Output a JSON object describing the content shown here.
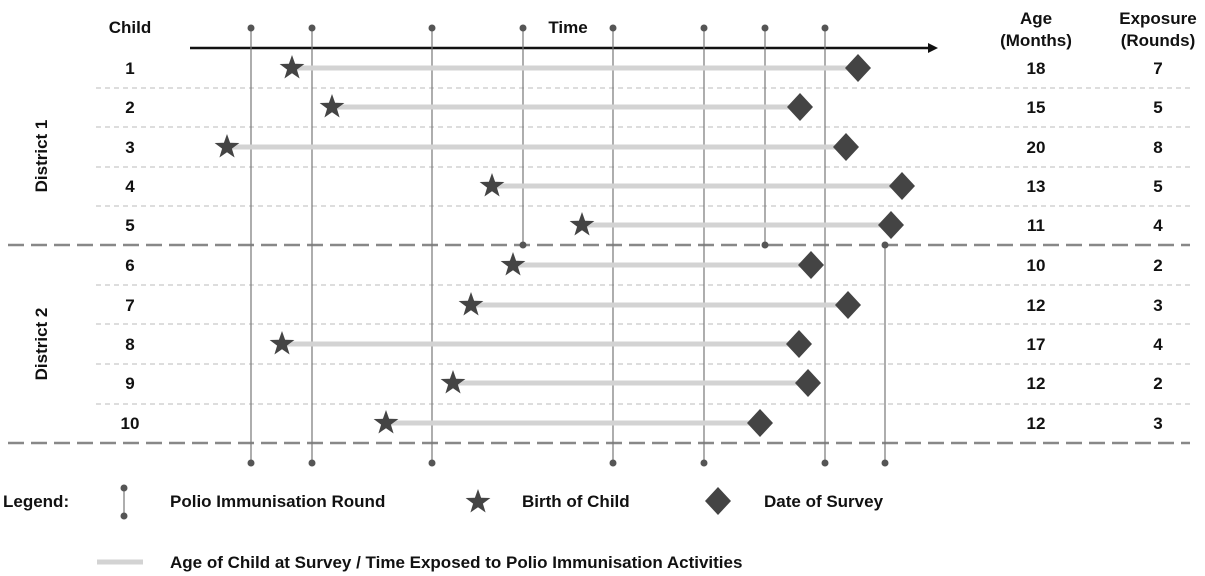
{
  "headers": {
    "child": "Child",
    "time": "Time",
    "age_line1": "Age",
    "age_line2": "(Months)",
    "exposure_line1": "Exposure",
    "exposure_line2": "(Rounds)"
  },
  "districts": [
    {
      "label": "District 1"
    },
    {
      "label": "District 2"
    }
  ],
  "children": [
    {
      "id": "1",
      "district": 1,
      "age": "18",
      "exposure": "7"
    },
    {
      "id": "2",
      "district": 1,
      "age": "15",
      "exposure": "5"
    },
    {
      "id": "3",
      "district": 1,
      "age": "20",
      "exposure": "8"
    },
    {
      "id": "4",
      "district": 1,
      "age": "13",
      "exposure": "5"
    },
    {
      "id": "5",
      "district": 1,
      "age": "11",
      "exposure": "4"
    },
    {
      "id": "6",
      "district": 2,
      "age": "10",
      "exposure": "2"
    },
    {
      "id": "7",
      "district": 2,
      "age": "12",
      "exposure": "3"
    },
    {
      "id": "8",
      "district": 2,
      "age": "17",
      "exposure": "4"
    },
    {
      "id": "9",
      "district": 2,
      "age": "12",
      "exposure": "2"
    },
    {
      "id": "10",
      "district": 2,
      "age": "12",
      "exposure": "3"
    }
  ],
  "legend": {
    "title": "Legend:",
    "round": "Polio Immunisation Round",
    "birth": "Birth of Child",
    "survey": "Date of Survey",
    "exposure": "Age of Child at Survey / Time Exposed to Polio Immunisation Activities"
  },
  "colors": {
    "marker": "#444444",
    "exposure_bar": "#d3d3d3",
    "round_line": "#777777",
    "divider": "#888888",
    "row_separator": "#bbbbbb"
  }
}
